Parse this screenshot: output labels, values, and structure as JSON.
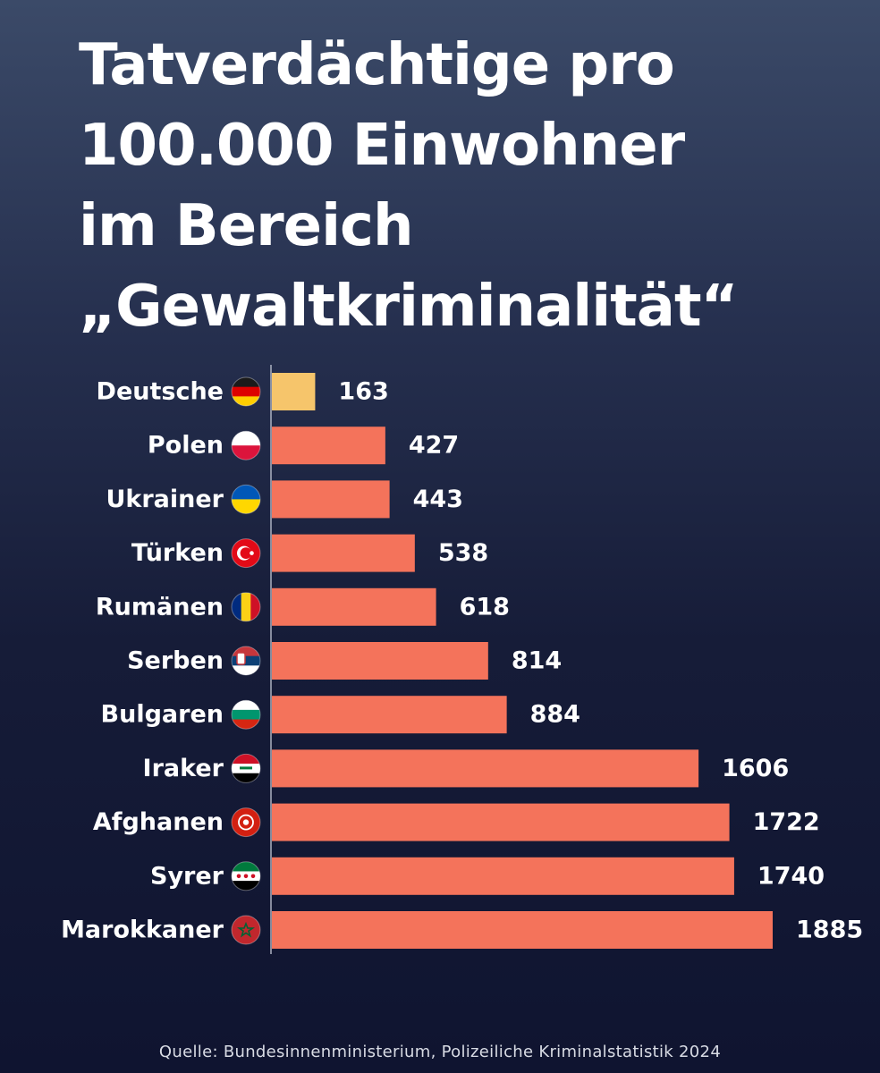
{
  "chart_data": {
    "type": "bar",
    "orientation": "horizontal",
    "title_lines": [
      "Tatverdächtige pro",
      "100.000 Einwohner",
      "im Bereich",
      "„Gewaltkriminalität“"
    ],
    "categories": [
      "Deutsche",
      "Polen",
      "Ukrainer",
      "Türken",
      "Rumänen",
      "Serben",
      "Bulgaren",
      "Iraker",
      "Afghanen",
      "Syrer",
      "Marokkaner"
    ],
    "values": [
      163,
      427,
      443,
      538,
      618,
      814,
      884,
      1606,
      1722,
      1740,
      1885
    ],
    "flags": [
      "germany-flag-icon",
      "poland-flag-icon",
      "ukraine-flag-icon",
      "turkey-flag-icon",
      "romania-flag-icon",
      "serbia-flag-icon",
      "bulgaria-flag-icon",
      "iraq-flag-icon",
      "afghanistan-flag-icon",
      "syria-flag-icon",
      "morocco-flag-icon"
    ],
    "bar_colors": {
      "highlight": "#f6c56b",
      "default": "#f4735b"
    },
    "highlight_category": "Deutsche",
    "xlim": [
      0,
      1885
    ],
    "grid": false,
    "legend": "none",
    "source": "Quelle: Bundesinnenministerium, Polizeiliche Kriminalstatistik 2024"
  }
}
